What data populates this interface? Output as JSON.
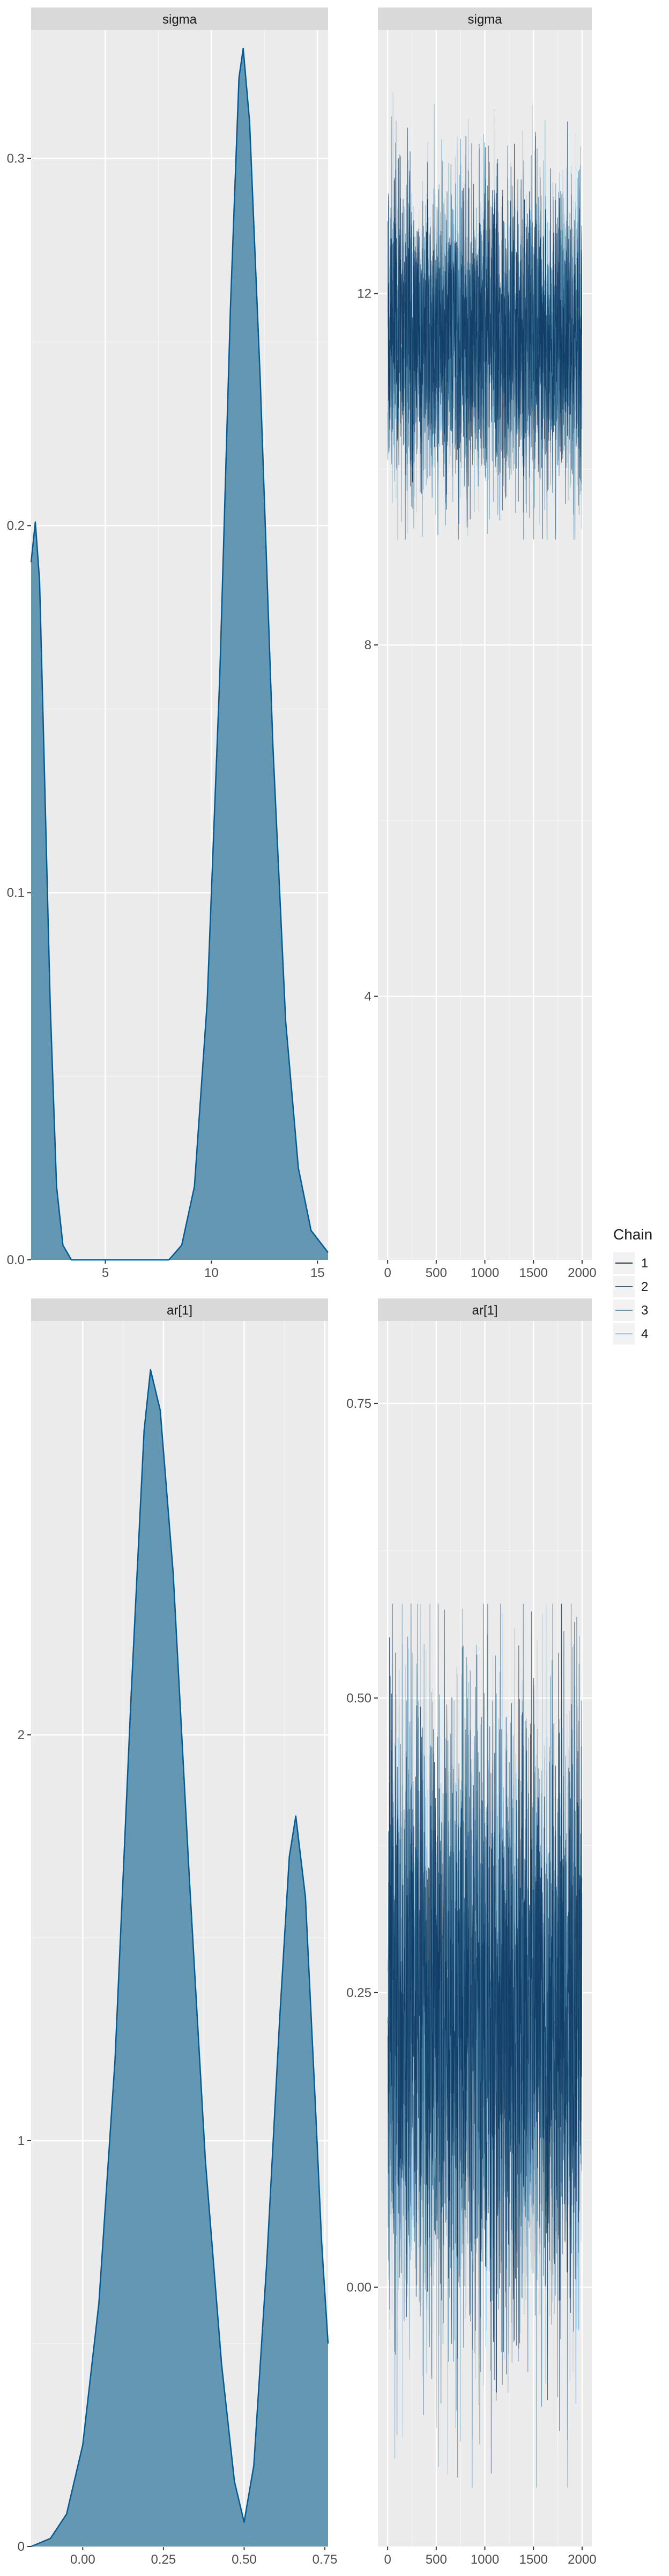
{
  "chart_data": [
    {
      "type": "area",
      "strip": "sigma",
      "xlim": [
        1.5,
        15.5
      ],
      "ylim": [
        0,
        0.335
      ],
      "xticks": [
        5,
        10,
        15
      ],
      "xtick_labels": [
        "5",
        "10",
        "15"
      ],
      "yticks": [
        0.0,
        0.1,
        0.2,
        0.3
      ],
      "ytick_labels": [
        "0.0",
        "0.1",
        "0.2",
        "0.3"
      ],
      "density": [
        {
          "x": 1.5,
          "y": 0.19
        },
        {
          "x": 1.7,
          "y": 0.201
        },
        {
          "x": 1.9,
          "y": 0.185
        },
        {
          "x": 2.1,
          "y": 0.14
        },
        {
          "x": 2.4,
          "y": 0.07
        },
        {
          "x": 2.7,
          "y": 0.02
        },
        {
          "x": 3.0,
          "y": 0.004
        },
        {
          "x": 3.4,
          "y": 0.0
        },
        {
          "x": 8.0,
          "y": 0.0
        },
        {
          "x": 8.6,
          "y": 0.004
        },
        {
          "x": 9.2,
          "y": 0.02
        },
        {
          "x": 9.8,
          "y": 0.07
        },
        {
          "x": 10.4,
          "y": 0.16
        },
        {
          "x": 10.9,
          "y": 0.26
        },
        {
          "x": 11.3,
          "y": 0.322
        },
        {
          "x": 11.5,
          "y": 0.33
        },
        {
          "x": 11.8,
          "y": 0.31
        },
        {
          "x": 12.3,
          "y": 0.24
        },
        {
          "x": 12.9,
          "y": 0.14
        },
        {
          "x": 13.5,
          "y": 0.065
        },
        {
          "x": 14.1,
          "y": 0.025
        },
        {
          "x": 14.7,
          "y": 0.008
        },
        {
          "x": 15.5,
          "y": 0.002
        }
      ]
    },
    {
      "type": "line",
      "strip": "sigma",
      "xlim": [
        -100,
        2100
      ],
      "ylim": [
        1.0,
        15.0
      ],
      "xticks": [
        0,
        500,
        1000,
        1500,
        2000
      ],
      "xtick_labels": [
        "0",
        "500",
        "1000",
        "1500",
        "2000"
      ],
      "yticks": [
        4,
        8,
        12
      ],
      "ytick_labels": [
        "4",
        "8",
        "12"
      ],
      "trace": {
        "iterations": 2000,
        "center": 11.5,
        "spread": 0.85,
        "min": 9.2,
        "max": 14.3
      },
      "series": [
        {
          "name": "1",
          "color": "#0b3560"
        },
        {
          "name": "2",
          "color": "#2a6a8f"
        },
        {
          "name": "3",
          "color": "#6796b3"
        },
        {
          "name": "4",
          "color": "#a6c3d6"
        }
      ]
    },
    {
      "type": "area",
      "strip": "ar[1]",
      "xlim": [
        -0.16,
        0.76
      ],
      "ylim": [
        0,
        3.02
      ],
      "xticks": [
        0.0,
        0.25,
        0.5,
        0.75
      ],
      "xtick_labels": [
        "0.00",
        "0.25",
        "0.50",
        "0.75"
      ],
      "yticks": [
        0,
        1,
        2
      ],
      "ytick_labels": [
        "0",
        "1",
        "2"
      ],
      "density": [
        {
          "x": -0.16,
          "y": 0.0
        },
        {
          "x": -0.1,
          "y": 0.02
        },
        {
          "x": -0.05,
          "y": 0.08
        },
        {
          "x": 0.0,
          "y": 0.25
        },
        {
          "x": 0.05,
          "y": 0.6
        },
        {
          "x": 0.1,
          "y": 1.2
        },
        {
          "x": 0.15,
          "y": 2.1
        },
        {
          "x": 0.19,
          "y": 2.75
        },
        {
          "x": 0.21,
          "y": 2.9
        },
        {
          "x": 0.24,
          "y": 2.8
        },
        {
          "x": 0.28,
          "y": 2.4
        },
        {
          "x": 0.33,
          "y": 1.65
        },
        {
          "x": 0.38,
          "y": 0.95
        },
        {
          "x": 0.43,
          "y": 0.45
        },
        {
          "x": 0.47,
          "y": 0.16
        },
        {
          "x": 0.5,
          "y": 0.06
        },
        {
          "x": 0.53,
          "y": 0.2
        },
        {
          "x": 0.57,
          "y": 0.7
        },
        {
          "x": 0.61,
          "y": 1.3
        },
        {
          "x": 0.64,
          "y": 1.7
        },
        {
          "x": 0.66,
          "y": 1.8
        },
        {
          "x": 0.69,
          "y": 1.6
        },
        {
          "x": 0.72,
          "y": 1.1
        },
        {
          "x": 0.74,
          "y": 0.75
        },
        {
          "x": 0.76,
          "y": 0.5
        }
      ]
    },
    {
      "type": "line",
      "strip": "ar[1]",
      "xlim": [
        -100,
        2100
      ],
      "ylim": [
        -0.22,
        0.82
      ],
      "xticks": [
        0,
        500,
        1000,
        1500,
        2000
      ],
      "xtick_labels": [
        "0",
        "500",
        "1000",
        "1500",
        "2000"
      ],
      "yticks": [
        0.0,
        0.25,
        0.5,
        0.75
      ],
      "ytick_labels": [
        "0.00",
        "0.25",
        "0.50",
        "0.75"
      ],
      "trace": {
        "iterations": 2000,
        "center": 0.23,
        "spread": 0.13,
        "min": -0.17,
        "max": 0.58
      },
      "series": [
        {
          "name": "1",
          "color": "#0b3560"
        },
        {
          "name": "2",
          "color": "#2a6a8f"
        },
        {
          "name": "3",
          "color": "#6796b3"
        },
        {
          "name": "4",
          "color": "#a6c3d6"
        }
      ]
    }
  ],
  "legend": {
    "title": "Chain",
    "placement": "right",
    "items": [
      {
        "label": "1",
        "color": "#0b3560"
      },
      {
        "label": "2",
        "color": "#2a6a8f"
      },
      {
        "label": "3",
        "color": "#6796b3"
      },
      {
        "label": "4",
        "color": "#a6c3d6"
      }
    ]
  },
  "colors": {
    "panel_bg": "#ebebeb",
    "strip_bg": "#d9d9d9",
    "grid": "#ffffff",
    "density_fill": "#6497b1",
    "density_line": "#005b96",
    "text": "#4d4d4d",
    "strip_text": "#1a1a1a"
  }
}
